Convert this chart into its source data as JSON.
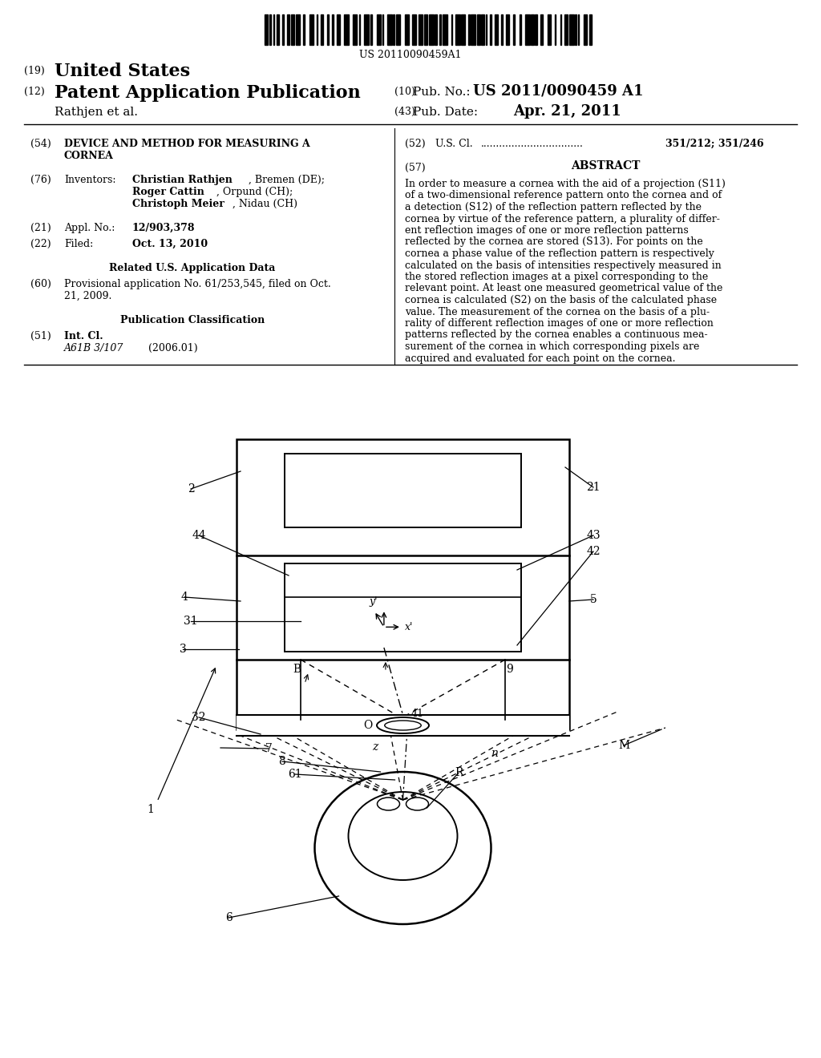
{
  "bg_color": "#ffffff",
  "barcode_text": "US 20110090459A1",
  "header": {
    "number_19": "(19)",
    "united_states": "United States",
    "number_12": "(12)",
    "patent_app": "Patent Application Publication",
    "number_10": "(10)",
    "pub_no_label": "Pub. No.:",
    "pub_no": "US 2011/0090459 A1",
    "inventors": "Rathjen et al.",
    "number_43": "(43)",
    "pub_date_label": "Pub. Date:",
    "pub_date": "Apr. 21, 2011"
  },
  "left_col": {
    "s54_num": "(54)",
    "s54_title1": "DEVICE AND METHOD FOR MEASURING A",
    "s54_title2": "CORNEA",
    "s76_num": "(76)",
    "s76_label": "Inventors:",
    "s76_inv1": "Christian Rathjen, Bremen (DE);",
    "s76_inv2": "Roger Cattin, Orpund (CH);",
    "s76_inv3": "Christoph Meier, Nidau (CH)",
    "s76_inv1b": "Christian Rathjen",
    "s76_inv2b": "Roger Cattin",
    "s76_inv3b": "Christoph Meier",
    "s21_num": "(21)",
    "s21_label": "Appl. No.:",
    "s21_value": "12/903,378",
    "s22_num": "(22)",
    "s22_label": "Filed:",
    "s22_value": "Oct. 13, 2010",
    "related_title": "Related U.S. Application Data",
    "s60_num": "(60)",
    "s60_text1": "Provisional application No. 61/253,545, filed on Oct.",
    "s60_text2": "21, 2009.",
    "pub_class_title": "Publication Classification",
    "s51_num": "(51)",
    "s51_label": "Int. Cl.",
    "s51_class": "A61B 3/107",
    "s51_year": "(2006.01)"
  },
  "right_col": {
    "s52_num": "(52)",
    "s52_label": "U.S. Cl.",
    "s52_dots": ".................................",
    "s52_value": "351/212; 351/246",
    "s57_num": "(57)",
    "s57_title": "ABSTRACT",
    "s57_text": "In order to measure a cornea with the aid of a projection (S11) of a two-dimensional reference pattern onto the cornea and of a detection (S12) of the reflection pattern reflected by the cornea by virtue of the reference pattern, a plurality of differ-ent reflection images of one or more reflection patterns reflected by the cornea are stored (S13). For points on the cornea a phase value of the reflection pattern is respectively calculated on the basis of intensities respectively measured in the stored reflection images at a pixel corresponding to the relevant point. At least one measured geometrical value of the cornea is calculated (S2) on the basis of the calculated phase value. The measurement of the cornea on the basis of a plu-rality of different reflection images of one or more reflection patterns reflected by the cornea enables a continuous mea-surement of the cornea in which corresponding pixels are acquired and evaluated for each point on the cornea."
  }
}
